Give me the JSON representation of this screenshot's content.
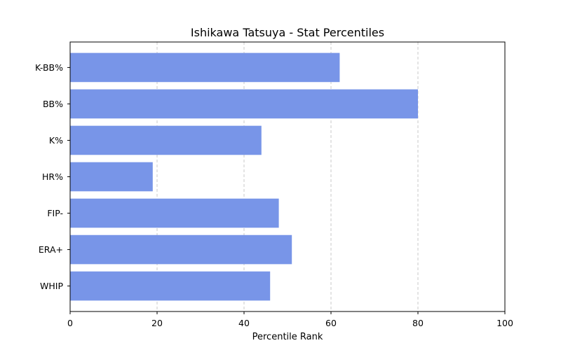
{
  "chart_data": {
    "type": "bar",
    "orientation": "horizontal",
    "title": "Ishikawa Tatsuya - Stat Percentiles",
    "xlabel": "Percentile Rank",
    "ylabel": "",
    "categories": [
      "WHIP",
      "ERA+",
      "FIP-",
      "HR%",
      "K%",
      "BB%",
      "K-BB%"
    ],
    "values": [
      46,
      51,
      48,
      19,
      44,
      80,
      62
    ],
    "xlim": [
      0,
      100
    ],
    "xticks": [
      0,
      20,
      40,
      60,
      80,
      100
    ],
    "grid": {
      "x": true,
      "y": false,
      "style": "dashed"
    },
    "colors": {
      "bar": "#7895e8",
      "grid": "#c8c8c8",
      "axis": "#000000"
    }
  }
}
